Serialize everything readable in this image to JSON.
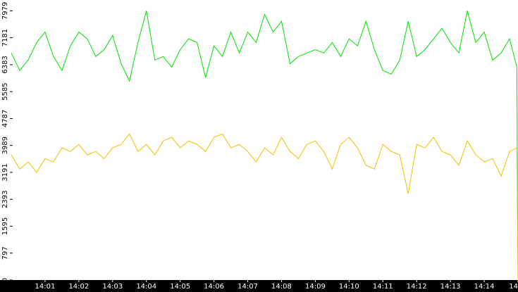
{
  "chart_data": {
    "type": "line",
    "x": [
      0,
      15,
      30,
      45,
      60,
      75,
      90,
      105,
      120,
      135,
      150,
      165,
      180,
      195,
      210,
      225,
      240,
      255,
      270,
      285,
      300,
      315,
      330,
      345,
      360,
      375,
      390,
      405,
      420,
      435,
      450,
      465,
      480,
      495,
      510,
      525,
      540,
      555,
      570,
      585,
      600,
      615,
      630,
      645,
      660,
      675,
      690,
      705,
      720,
      735,
      750,
      765,
      780,
      795,
      810,
      825,
      840,
      855,
      870,
      885,
      898,
      900
    ],
    "series": [
      {
        "color": "#00e000",
        "values": [
          6730,
          6210,
          6520,
          7040,
          7350,
          6625,
          6210,
          6940,
          7350,
          7150,
          6625,
          6830,
          7250,
          6415,
          5900,
          7040,
          7980,
          6520,
          6625,
          6310,
          6830,
          7150,
          7040,
          6000,
          6940,
          6625,
          7350,
          6730,
          7350,
          7040,
          7875,
          7350,
          7670,
          6415,
          6625,
          6730,
          6830,
          6730,
          7040,
          6625,
          7150,
          6940,
          7670,
          6830,
          6210,
          6100,
          6520,
          7670,
          6625,
          6830,
          7150,
          7460,
          7040,
          6730,
          7980,
          7040,
          7350,
          6520,
          6730,
          7150,
          6310,
          0
        ]
      },
      {
        "color": "#f0c000",
        "values": [
          3710,
          3290,
          3500,
          3190,
          3600,
          3500,
          3920,
          3810,
          4020,
          3710,
          3810,
          3600,
          3920,
          4020,
          4330,
          3810,
          4020,
          3710,
          4125,
          4230,
          3920,
          4125,
          4020,
          3810,
          4230,
          4330,
          3920,
          4020,
          3810,
          3500,
          3920,
          3710,
          4230,
          3810,
          3600,
          4020,
          4125,
          3810,
          3290,
          4020,
          4230,
          3920,
          3400,
          3290,
          4020,
          3810,
          3710,
          2560,
          4020,
          3920,
          4230,
          3810,
          3710,
          3400,
          4125,
          3710,
          3500,
          3600,
          3080,
          3810,
          3920,
          0
        ]
      }
    ],
    "xlim": [
      0,
      900
    ],
    "xticks": [
      {
        "value": 60,
        "label": "14:01"
      },
      {
        "value": 120,
        "label": "14:02"
      },
      {
        "value": 180,
        "label": "14:03"
      },
      {
        "value": 240,
        "label": "14:04"
      },
      {
        "value": 300,
        "label": "14:05"
      },
      {
        "value": 360,
        "label": "14:06"
      },
      {
        "value": 420,
        "label": "14:07"
      },
      {
        "value": 480,
        "label": "14:08"
      },
      {
        "value": 540,
        "label": "14:09"
      },
      {
        "value": 600,
        "label": "14:10"
      },
      {
        "value": 660,
        "label": "14:11"
      },
      {
        "value": 720,
        "label": "14:12"
      },
      {
        "value": 780,
        "label": "14:13"
      },
      {
        "value": 840,
        "label": "14:14"
      },
      {
        "value": 900,
        "label": "14"
      }
    ],
    "ylim": [
      0,
      8300
    ],
    "yticks": [
      0,
      797,
      1595,
      2393,
      3191,
      3989,
      4787,
      5585,
      6383,
      7181,
      7979
    ]
  }
}
